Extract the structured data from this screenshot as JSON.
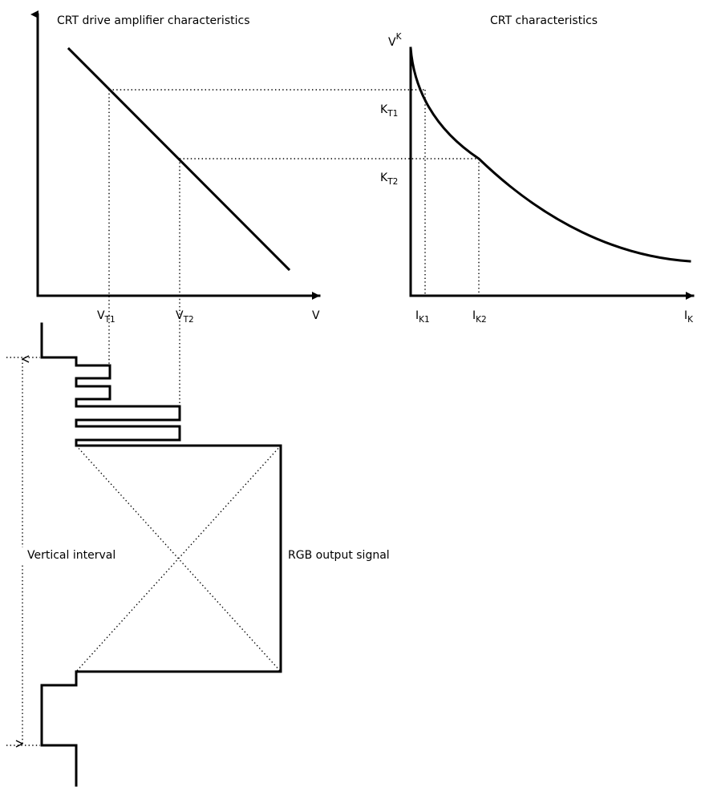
{
  "titles": {
    "left": "CRT drive amplifier characteristics",
    "right": "CRT characteristics"
  },
  "labels": {
    "v_t1_main": "V",
    "v_t1_sub": "T1",
    "v_t2_main": "V",
    "v_t2_sub": "T2",
    "v_axis": "V",
    "v_k_main": "V",
    "v_k_sub": "K",
    "k_t1_main": "K",
    "k_t1_sub": "T1",
    "k_t2_main": "K",
    "k_t2_sub": "T2",
    "i_k1_main": "I",
    "i_k1_sub": "K1",
    "i_k2_main": "I",
    "i_k2_sub": "K2",
    "i_k_main": "I",
    "i_k_sub": "K",
    "vertical_interval": "Vertical interval",
    "rgb_output": "RGB output signal"
  }
}
